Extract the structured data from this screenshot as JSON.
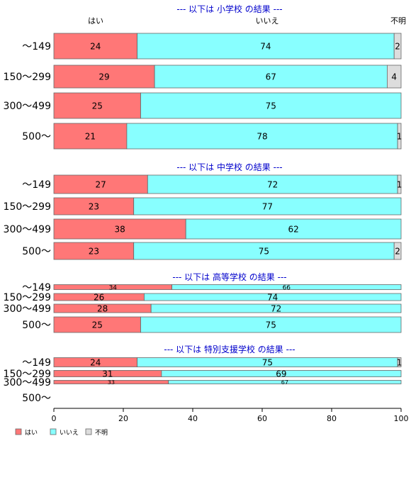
{
  "column_labels": [
    "はい",
    "いいえ",
    "不明"
  ],
  "chart_data": [
    {
      "type": "bar",
      "orientation": "horizontal",
      "stacked": true,
      "title": "--- 以下は 小学校 の結果 ---",
      "categories": [
        "～149",
        "150～299",
        "300～499",
        "500～"
      ],
      "series": [
        {
          "name": "はい",
          "values": [
            24,
            29,
            25,
            21
          ]
        },
        {
          "name": "いいえ",
          "values": [
            74,
            67,
            75,
            78
          ]
        },
        {
          "name": "不明",
          "values": [
            2,
            4,
            0,
            1
          ]
        }
      ]
    },
    {
      "type": "bar",
      "orientation": "horizontal",
      "stacked": true,
      "title": "--- 以下は 中学校 の結果 ---",
      "categories": [
        "～149",
        "150～299",
        "300～499",
        "500～"
      ],
      "series": [
        {
          "name": "はい",
          "values": [
            27,
            23,
            38,
            23
          ]
        },
        {
          "name": "いいえ",
          "values": [
            72,
            77,
            62,
            75
          ]
        },
        {
          "name": "不明",
          "values": [
            1,
            0,
            0,
            2
          ]
        }
      ]
    },
    {
      "type": "bar",
      "orientation": "horizontal",
      "stacked": true,
      "title": "--- 以下は 高等学校 の結果 ---",
      "categories": [
        "～149",
        "150～299",
        "300～499",
        "500～"
      ],
      "series": [
        {
          "name": "はい",
          "values": [
            34,
            26,
            28,
            25
          ]
        },
        {
          "name": "いいえ",
          "values": [
            66,
            74,
            72,
            75
          ]
        },
        {
          "name": "不明",
          "values": [
            0,
            0,
            0,
            0
          ]
        }
      ]
    },
    {
      "type": "bar",
      "orientation": "horizontal",
      "stacked": true,
      "title": "--- 以下は 特別支援学校 の結果 ---",
      "categories": [
        "～149",
        "150～299",
        "300～499",
        "500～"
      ],
      "series": [
        {
          "name": "はい",
          "values": [
            24,
            31,
            33,
            null
          ]
        },
        {
          "name": "いいえ",
          "values": [
            75,
            69,
            67,
            null
          ]
        },
        {
          "name": "不明",
          "values": [
            1,
            0,
            0,
            null
          ]
        }
      ]
    }
  ],
  "x_axis": {
    "ticks": [
      0,
      20,
      40,
      60,
      80,
      100
    ],
    "range": [
      0,
      100
    ]
  },
  "legend": {
    "position": "bottom-left",
    "items": [
      "はい",
      "いいえ",
      "不明"
    ]
  },
  "colors": {
    "yes": "#ff7777",
    "no": "#88ffff",
    "unknown": "#dddddd",
    "title": "#0000cc",
    "bar_border": "#666666",
    "text": "#000000"
  }
}
